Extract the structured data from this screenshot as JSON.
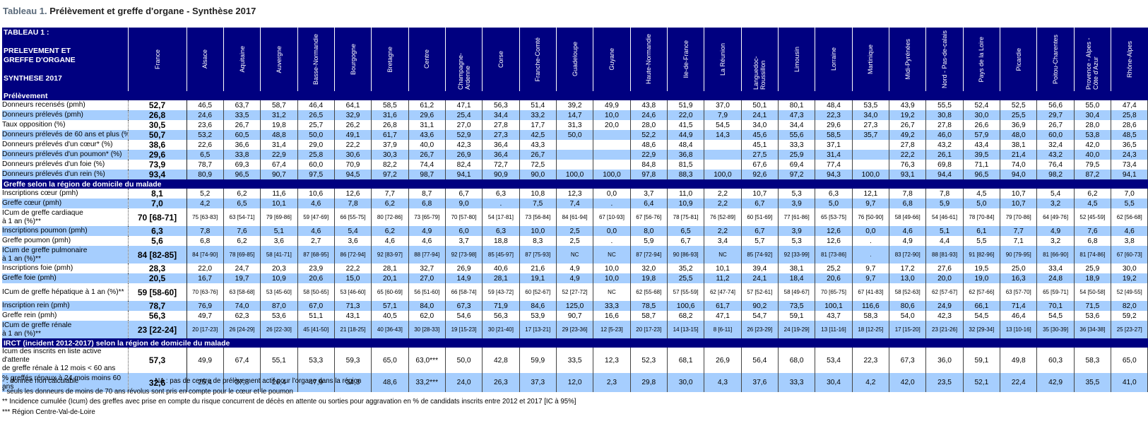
{
  "title": {
    "label": "Tableau 1.",
    "text": "Prélèvement et greffe d'organe - Synthèse 2017"
  },
  "corner": {
    "line1": "TABLEAU 1 :",
    "line2": "PRELEVEMENT ET",
    "line3": "GREFFE D'ORGANE",
    "line4": "SYNTHESE 2017"
  },
  "regions": [
    "France",
    "Alsace",
    "Aquitaine",
    "Auvergne",
    "Basse-Normandie",
    "Bourgogne",
    "Bretagne",
    "Centre",
    "Champagne-Ardenne",
    "Corse",
    "Franche-Comté",
    "Guadeloupe",
    "Guyane",
    "Haute-Normandie",
    "Ile-de-France",
    "La Réunion",
    "Languedoc-Roussillon",
    "Limousin",
    "Lorraine",
    "Martinique",
    "Midi-Pyrénées",
    "Nord - Pas-de-calais",
    "Pays de la Loire",
    "Picardie",
    "Poitou-Charentes",
    "Provence - Alpes - Côte d'Azur",
    "Rhône-Alpes"
  ],
  "sections": [
    {
      "title": "Prélèvement",
      "rows": [
        {
          "label": "Donneurs recensés (pmh)",
          "vals": [
            "52,7",
            "46,5",
            "63,7",
            "58,7",
            "46,4",
            "64,1",
            "58,5",
            "61,2",
            "47,1",
            "56,3",
            "51,4",
            "39,2",
            "49,9",
            "43,8",
            "51,9",
            "37,0",
            "50,1",
            "80,1",
            "48,4",
            "53,5",
            "43,9",
            "55,5",
            "52,4",
            "52,5",
            "56,6",
            "55,0",
            "47,4"
          ]
        },
        {
          "label": "Donneurs prélevés (pmh)",
          "vals": [
            "26,8",
            "24,6",
            "33,5",
            "31,2",
            "26,5",
            "32,9",
            "31,6",
            "29,6",
            "25,4",
            "34,4",
            "33,2",
            "14,7",
            "10,0",
            "24,6",
            "22,0",
            "7,9",
            "24,1",
            "47,3",
            "22,3",
            "34,0",
            "19,2",
            "30,8",
            "30,0",
            "25,5",
            "29,7",
            "30,4",
            "25,8"
          ]
        },
        {
          "label": "Taux opposition (%)",
          "vals": [
            "30,5",
            "23,6",
            "26,7",
            "19,8",
            "25,7",
            "26,2",
            "26,8",
            "31,1",
            "27,0",
            "27,8",
            "17,7",
            "31,3",
            "20,0",
            "28,0",
            "41,5",
            "54,5",
            "34,0",
            "34,4",
            "29,6",
            "27,3",
            "26,7",
            "27,8",
            "26,6",
            "36,9",
            "26,7",
            "28,0",
            "28,6"
          ]
        },
        {
          "label": "Donneurs prélevés de 60 ans et plus (%)",
          "vals": [
            "50,7",
            "53,2",
            "60,5",
            "48,8",
            "50,0",
            "49,1",
            "61,7",
            "43,6",
            "52,9",
            "27,3",
            "42,5",
            "50,0",
            "",
            "52,2",
            "44,9",
            "14,3",
            "45,6",
            "55,6",
            "58,5",
            "35,7",
            "49,2",
            "46,0",
            "57,9",
            "48,0",
            "60,0",
            "53,8",
            "48,5"
          ]
        },
        {
          "label": "Donneurs prélevés d'un cœur* (%)",
          "vals": [
            "38,6",
            "22,6",
            "36,6",
            "31,4",
            "29,0",
            "22,2",
            "37,9",
            "40,0",
            "42,3",
            "36,4",
            "43,3",
            "",
            "",
            "48,6",
            "48,4",
            "",
            "45,1",
            "33,3",
            "37,1",
            "",
            "27,8",
            "43,2",
            "43,4",
            "38,1",
            "32,4",
            "42,0",
            "36,5"
          ]
        },
        {
          "label": "Donneurs prélevés d'un poumon* (%)",
          "vals": [
            "29,6",
            "6,5",
            "33,8",
            "22,9",
            "25,8",
            "30,6",
            "30,3",
            "26,7",
            "26,9",
            "36,4",
            "26,7",
            "",
            "",
            "22,9",
            "36,8",
            "",
            "27,5",
            "25,9",
            "31,4",
            "",
            "22,2",
            "26,1",
            "39,5",
            "21,4",
            "43,2",
            "40,0",
            "24,3"
          ]
        },
        {
          "label": "Donneurs prélevés d'un foie (%)",
          "vals": [
            "73,9",
            "78,7",
            "69,3",
            "67,4",
            "60,0",
            "70,9",
            "82,2",
            "74,4",
            "82,4",
            "72,7",
            "72,5",
            "",
            "",
            "84,8",
            "81,5",
            "",
            "67,6",
            "69,4",
            "77,4",
            "",
            "76,3",
            "69,8",
            "71,1",
            "74,0",
            "76,4",
            "79,5",
            "73,4"
          ]
        },
        {
          "label": "Donneurs prélevés d'un rein (%)",
          "vals": [
            "93,4",
            "80,9",
            "96,5",
            "90,7",
            "97,5",
            "94,5",
            "97,2",
            "98,7",
            "94,1",
            "90,9",
            "90,0",
            "100,0",
            "100,0",
            "97,8",
            "88,3",
            "100,0",
            "92,6",
            "97,2",
            "94,3",
            "100,0",
            "93,1",
            "94,4",
            "96,5",
            "94,0",
            "98,2",
            "87,2",
            "94,1"
          ]
        }
      ]
    },
    {
      "title": "Greffe selon la région de domicile du malade",
      "rows": [
        {
          "label": "Inscriptions cœur (pmh)",
          "vals": [
            "8,1",
            "5,2",
            "6,2",
            "11,6",
            "10,6",
            "12,6",
            "7,7",
            "8,7",
            "6,7",
            "6,3",
            "10,8",
            "12,3",
            "0,0",
            "3,7",
            "11,0",
            "2,2",
            "10,7",
            "5,3",
            "6,3",
            "12,1",
            "7,8",
            "7,8",
            "4,5",
            "10,7",
            "5,4",
            "6,2",
            "7,0"
          ]
        },
        {
          "label": "Greffe cœur (pmh)",
          "vals": [
            "7,0",
            "4,2",
            "6,5",
            "10,1",
            "4,6",
            "7,8",
            "6,2",
            "6,8",
            "9,0",
            ".",
            "7,5",
            "7,4",
            ".",
            "6,4",
            "10,9",
            "2,2",
            "6,7",
            "3,9",
            "5,0",
            "9,7",
            "6,8",
            "5,9",
            "5,0",
            "10,7",
            "3,2",
            "4,5",
            "5,5"
          ]
        },
        {
          "label": "ICum de greffe cardiaque\nà 1 an (%)**",
          "vals": [
            "70 [68-71]",
            "75 [63-83]",
            "63 [54-71]",
            "79 [69-86]",
            "59 [47-69]",
            "66 [55-75]",
            "80 [72-86]",
            "73 [65-79]",
            "70 [57-80]",
            "54 [17-81]",
            "73 [56-84]",
            "84 [61-94]",
            "67 [10-93]",
            "67 [56-76]",
            "78 [75-81]",
            "76 [52-89]",
            "60 [51-69]",
            "77 [61-86]",
            "65 [53-75]",
            "76 [50-90]",
            "58 [49-66]",
            "54 [46-61]",
            "78 [70-84]",
            "79 [70-86]",
            "64 [49-76]",
            "52 [45-59]",
            "62 [56-68]"
          ]
        },
        {
          "label": "Inscriptions poumon (pmh)",
          "vals": [
            "6,3",
            "7,8",
            "7,6",
            "5,1",
            "4,6",
            "5,4",
            "6,2",
            "4,9",
            "6,0",
            "6,3",
            "10,0",
            "2,5",
            "0,0",
            "8,0",
            "6,5",
            "2,2",
            "6,7",
            "3,9",
            "12,6",
            "0,0",
            "4,6",
            "5,1",
            "6,1",
            "7,7",
            "4,9",
            "7,6",
            "4,6"
          ]
        },
        {
          "label": "Greffe poumon (pmh)",
          "vals": [
            "5,6",
            "6,8",
            "6,2",
            "3,6",
            "2,7",
            "3,6",
            "4,6",
            "4,6",
            "3,7",
            "18,8",
            "8,3",
            "2,5",
            ".",
            "5,9",
            "6,7",
            "3,4",
            "5,7",
            "5,3",
            "12,6",
            ".",
            "4,9",
            "4,4",
            "5,5",
            "7,1",
            "3,2",
            "6,8",
            "3,8"
          ]
        },
        {
          "label": "ICum de greffe pulmonaire\nà 1 an (%)**",
          "vals": [
            "84 [82-85]",
            "84 [74-90]",
            "78 [69-85]",
            "58 [41-71]",
            "87 [68-95]",
            "86 [72-94]",
            "92 [83-97]",
            "88 [77-94]",
            "92 [73-98]",
            "85 [45-97]",
            "87 [75-93]",
            "NC",
            "NC",
            "87 [72-94]",
            "90 [86-93]",
            "NC",
            "85 [74-92]",
            "92 [33-99]",
            "81 [73-86]",
            ".",
            "83 [72-90]",
            "88 [81-93]",
            "91 [82-96]",
            "90 [79-95]",
            "81 [66-90]",
            "81 [74-86]",
            "67 [60-73]"
          ]
        },
        {
          "label": "Inscriptions foie (pmh)",
          "vals": [
            "28,3",
            "22,0",
            "24,7",
            "20,3",
            "23,9",
            "22,2",
            "28,1",
            "32,7",
            "26,9",
            "40,6",
            "21,6",
            "4,9",
            "10,0",
            "32,0",
            "35,2",
            "10,1",
            "39,4",
            "38,1",
            "25,2",
            "9,7",
            "17,2",
            "27,6",
            "19,5",
            "25,0",
            "33,4",
            "25,9",
            "30,0"
          ]
        },
        {
          "label": "Greffe foie (pmh)",
          "vals": [
            "20,5",
            "16,7",
            "19,7",
            "10,9",
            "20,6",
            "15,0",
            "20,1",
            "27,0",
            "14,9",
            "28,1",
            "19,1",
            "4,9",
            "10,0",
            "19,8",
            "25,5",
            "11,2",
            "24,1",
            "18,4",
            "20,6",
            "9,7",
            "13,0",
            "20,0",
            "19,0",
            "16,3",
            "24,8",
            "18,9",
            "19,2"
          ]
        },
        {
          "label": "ICum de greffe hépatique à 1 an (%)**",
          "vals": [
            "59 [58-60]",
            "70 [63-76]",
            "63 [58-68]",
            "53 [45-60]",
            "58 [50-65]",
            "53 [46-60]",
            "65 [60-69]",
            "56 [51-60]",
            "66 [58-74]",
            "59 [43-72]",
            "60 [52-67]",
            "52 [27-72]",
            "NC",
            "62 [55-68]",
            "57 [55-59]",
            "62 [47-74]",
            "57 [52-61]",
            "58 [49-67]",
            "70 [65-75]",
            "67 [41-83]",
            "58 [52-63]",
            "62 [57-67]",
            "62 [57-66]",
            "63 [57-70]",
            "65 [59-71]",
            "54 [50-58]",
            "52 [49-55]"
          ]
        },
        {
          "label": "Inscription rein (pmh)",
          "vals": [
            "78,7",
            "76,9",
            "74,0",
            "87,0",
            "67,0",
            "71,3",
            "57,1",
            "84,0",
            "67,3",
            "71,9",
            "84,6",
            "125,0",
            "33,3",
            "78,5",
            "100,6",
            "61,7",
            "90,2",
            "73,5",
            "100,1",
            "116,6",
            "80,6",
            "24,9",
            "66,1",
            "71,4",
            "70,1",
            "71,5",
            "82,0"
          ]
        },
        {
          "label": "Greffe rein (pmh)",
          "vals": [
            "56,3",
            "49,7",
            "62,3",
            "53,6",
            "51,1",
            "43,1",
            "40,5",
            "62,0",
            "54,6",
            "56,3",
            "53,9",
            "90,7",
            "16,6",
            "58,7",
            "68,2",
            "47,1",
            "54,7",
            "59,1",
            "43,7",
            "58,3",
            "54,0",
            "42,3",
            "54,5",
            "46,4",
            "54,5",
            "53,6",
            "59,2"
          ]
        },
        {
          "label": "ICum de greffe rénale\nà 1 an (%)**",
          "vals": [
            "23 [22-24]",
            "20 [17-23]",
            "26 [24-29]",
            "26 [22-30]",
            "45 [41-50]",
            "21 [18-25]",
            "40 [36-43]",
            "30 [28-33]",
            "19 [15-23]",
            "30 [21-40]",
            "17 [13-21]",
            "29 [23-36]",
            "12 [5-23]",
            "20 [17-23]",
            "14 [13-15]",
            "8 [6-11]",
            "26 [23-29]",
            "24 [19-29]",
            "13 [11-16]",
            "18 [12-25]",
            "17 [15-20]",
            "23 [21-26]",
            "32 [29-34]",
            "13 [10-16]",
            "35 [30-39]",
            "36 [34-38]",
            "25 [23-27]"
          ]
        }
      ]
    },
    {
      "title": "IRCT (incident 2012-2017) selon la région de domicile du malade",
      "rows": [
        {
          "label": "Icum des inscrits en liste active d'attente\nde greffe rénale à 12 mois < 60 ans",
          "vals": [
            "57,3",
            "49,9",
            "67,4",
            "55,1",
            "53,3",
            "59,3",
            "65,0",
            "63,0***",
            "50,0",
            "42,8",
            "59,9",
            "33,5",
            "12,3",
            "52,3",
            "68,1",
            "26,9",
            "56,4",
            "68,0",
            "53,4",
            "22,3",
            "67,3",
            "36,0",
            "59,1",
            "49,8",
            "60,3",
            "58,3",
            "65,0"
          ]
        },
        {
          "label": "% greffés rénaux à 24 mois moins 60\nans",
          "vals": [
            "32,6",
            "25,4",
            "37,8",
            "26,4",
            "47,9",
            "34,3",
            "48,6",
            "33,2***",
            "24,0",
            "26,3",
            "37,3",
            "12,0",
            "2,3",
            "29,8",
            "30,0",
            "4,3",
            "37,6",
            "33,3",
            "30,4",
            "4,2",
            "42,0",
            "23,5",
            "52,1",
            "22,4",
            "42,9",
            "35,5",
            "41,0"
          ]
        }
      ]
    }
  ],
  "notes": {
    "n1a": "- : donnée non calculable",
    "n1b": "NA : pas de centre de prélèvement actif pour l'organe dans la région",
    "n2": "* seuls les donneurs de moins de 70 ans révolus sont pris en compte pour  le cœur et le poumon",
    "n3": "** Incidence cumulée (Icum) des greffes avec prise en compte du risque concurrent de décès en attente ou sorties pour aggravation en % de candidats inscrits entre 2012 et 2017 [IC à 95%]",
    "n4": "*** Région Centre-Val-de-Loire"
  }
}
